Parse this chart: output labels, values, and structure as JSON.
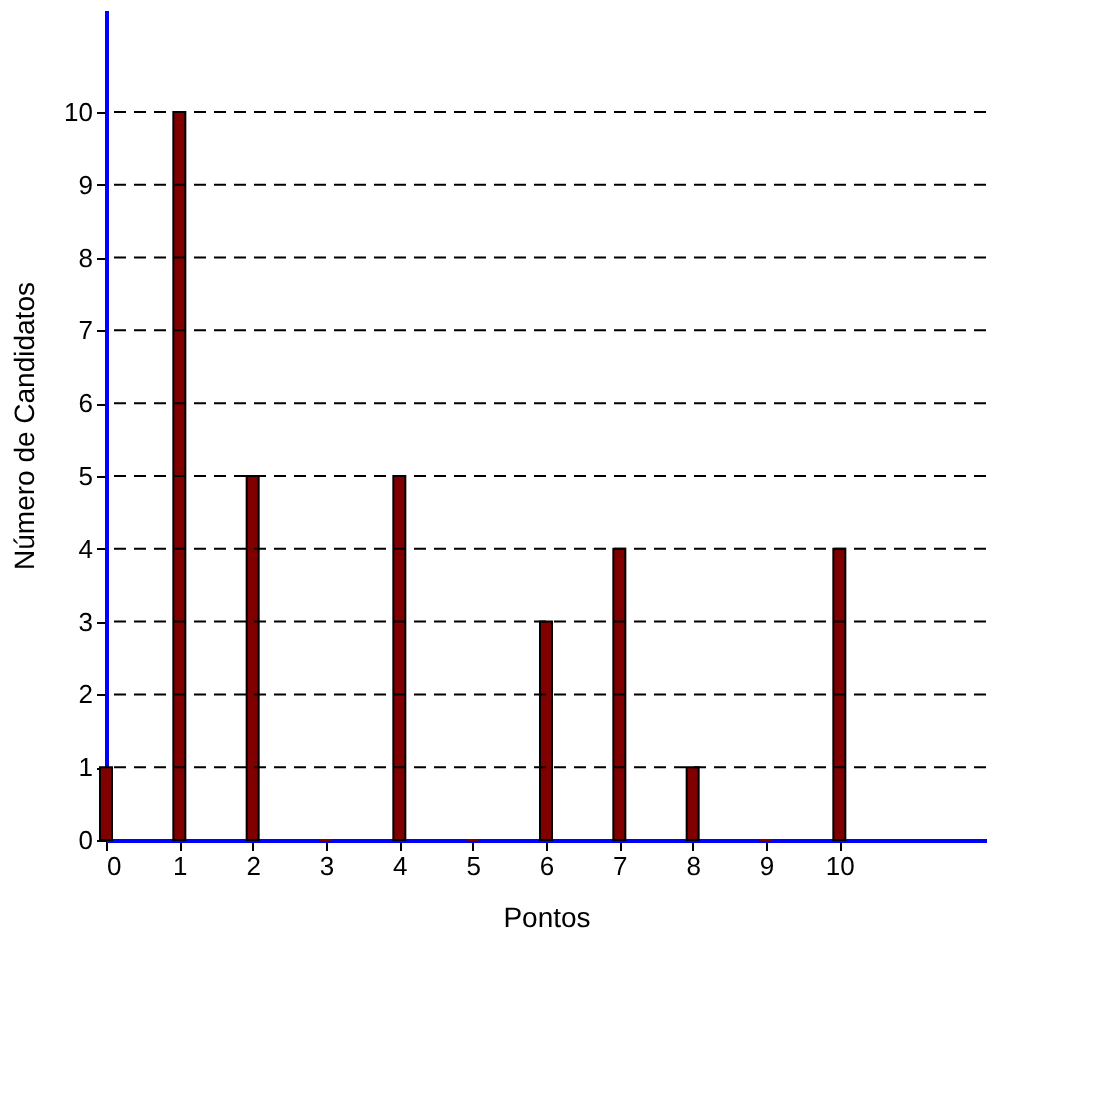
{
  "chart_data": {
    "type": "bar",
    "x": [
      0,
      1,
      2,
      3,
      4,
      5,
      6,
      7,
      8,
      9,
      10
    ],
    "values": [
      1,
      10,
      5,
      0,
      5,
      0,
      3,
      4,
      1,
      0,
      4
    ],
    "color": "#800000",
    "xlabel": "Pontos",
    "ylabel": "Número de Candidatos",
    "xlim": [
      0,
      12
    ],
    "ylim": [
      0,
      11.4
    ],
    "xticks": [
      0,
      1,
      2,
      3,
      4,
      5,
      6,
      7,
      8,
      9,
      10
    ],
    "yticks": [
      0,
      1,
      2,
      3,
      4,
      5,
      6,
      7,
      8,
      9,
      10
    ],
    "grid": "y",
    "line_style": "dashed"
  }
}
